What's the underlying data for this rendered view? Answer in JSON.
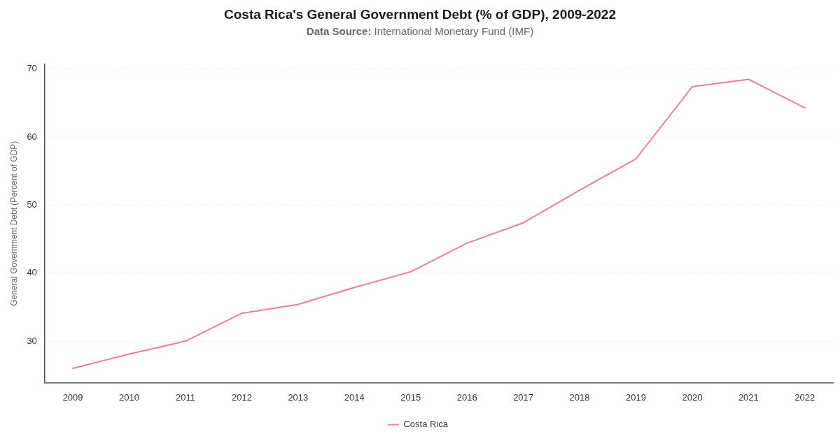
{
  "chart_data": {
    "type": "line",
    "title": "Costa Rica's General Government Debt (% of GDP), 2009-2022",
    "subtitle": "Data Source: International Monetary Fund (IMF)",
    "ylabel": "General Government Debt (Percent of GDP)",
    "categories": [
      "2009",
      "2010",
      "2011",
      "2012",
      "2013",
      "2014",
      "2015",
      "2016",
      "2017",
      "2018",
      "2019",
      "2020",
      "2021",
      "2022"
    ],
    "series": [
      {
        "name": "Costa Rica",
        "color": "#ef7aa6",
        "values": [
          26.0,
          28.1,
          30.0,
          34.1,
          35.4,
          37.9,
          40.2,
          44.4,
          47.4,
          52.2,
          56.8,
          67.4,
          68.5,
          64.3
        ]
      }
    ],
    "ylim": [
      23.9,
      70.7
    ],
    "yticks": [
      30,
      40,
      50,
      60,
      70
    ],
    "grid": "y",
    "legend": "bottom",
    "marker": "none",
    "line_style": "solid"
  }
}
